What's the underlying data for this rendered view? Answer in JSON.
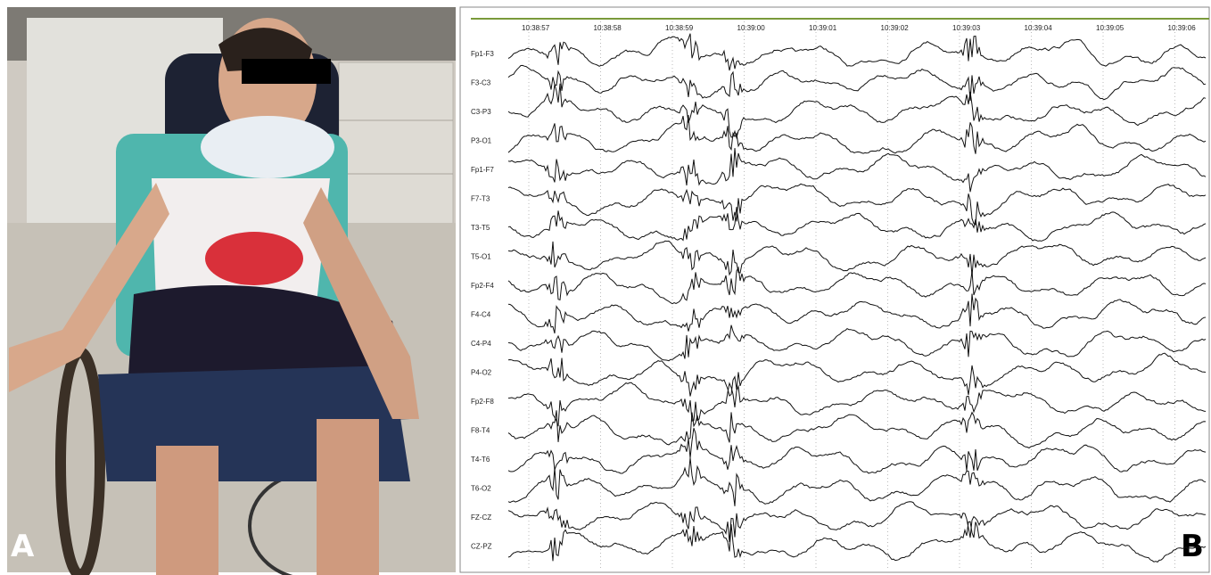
{
  "panels": [
    {
      "label": "A"
    },
    {
      "label": "B",
      "time_labels": [
        "10:38:57",
        "10:38:58",
        "10:38:59",
        "10:39:00",
        "10:39:01",
        "10:39:02",
        "10:39:03",
        "10:39:04",
        "10:39:05",
        "10:39:06"
      ],
      "channels": [
        "Fp1-F3",
        "F3-C3",
        "C3-P3",
        "P3-O1",
        "Fp1-F7",
        "F7-T3",
        "T3-T5",
        "T5-O1",
        "Fp2-F4",
        "F4-C4",
        "C4-P4",
        "P4-O2",
        "Fp2-F8",
        "F8-T4",
        "T4-T6",
        "T6-O2",
        "FZ-CZ",
        "CZ-PZ"
      ]
    }
  ]
}
